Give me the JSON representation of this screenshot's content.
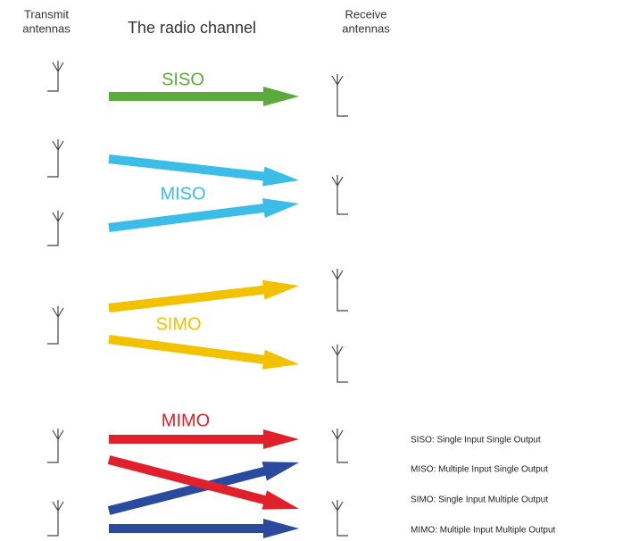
{
  "header": {
    "transmit": [
      "Transmit",
      "antennas"
    ],
    "channel": "The radio channel",
    "receive": [
      "Receive",
      "antennas"
    ]
  },
  "labels": {
    "siso": "SISO",
    "miso": "MISO",
    "simo": "SIMO",
    "mimo": "MIMO"
  },
  "legend": [
    "SISO: Single Input Single Output",
    "MISO: Multiple Input Single Output",
    "SIMO: Single Input Multiple Output",
    "MIMO: Multiple Input Multiple Output"
  ]
}
